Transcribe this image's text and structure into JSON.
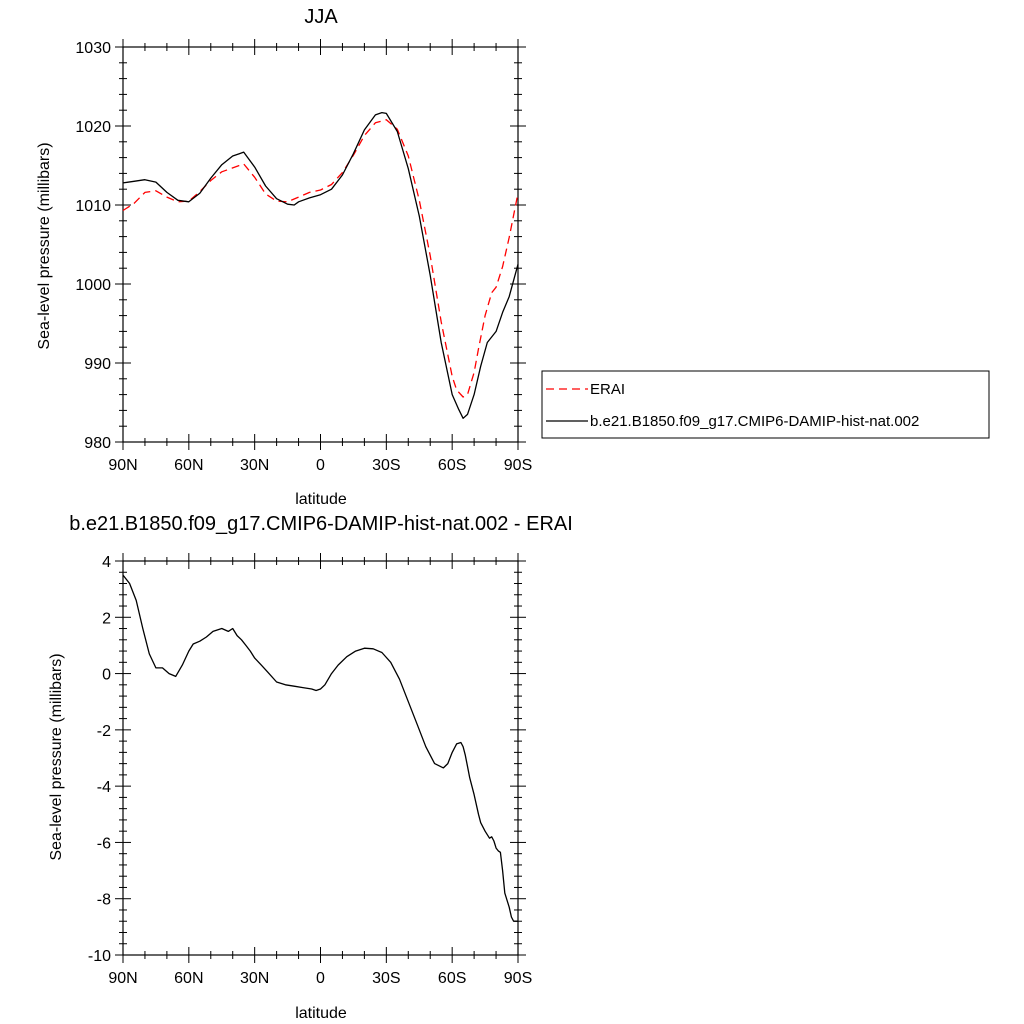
{
  "chart_data": [
    {
      "type": "line",
      "title": "JJA",
      "xlabel": "latitude",
      "ylabel": "Sea-level pressure (millibars)",
      "xlim": [
        90,
        -90
      ],
      "ylim": [
        980,
        1030
      ],
      "x_ticks": [
        {
          "value": 90,
          "label": "90N"
        },
        {
          "value": 60,
          "label": "60N"
        },
        {
          "value": 30,
          "label": "30N"
        },
        {
          "value": 0,
          "label": "0"
        },
        {
          "value": -30,
          "label": "30S"
        },
        {
          "value": -60,
          "label": "60S"
        },
        {
          "value": -90,
          "label": "90S"
        }
      ],
      "y_ticks": [
        {
          "value": 980,
          "label": "980"
        },
        {
          "value": 990,
          "label": "990"
        },
        {
          "value": 1000,
          "label": "1000"
        },
        {
          "value": 1010,
          "label": "1010"
        },
        {
          "value": 1020,
          "label": "1020"
        },
        {
          "value": 1030,
          "label": "1030"
        }
      ],
      "legend": {
        "placement": "right, outside plot"
      },
      "series": [
        {
          "name": "ERAI",
          "color": "#ff0000",
          "dash": "dashed",
          "x": [
            90,
            85,
            80,
            75,
            70,
            65,
            60,
            55,
            50,
            45,
            40,
            35,
            30,
            25,
            20,
            15,
            10,
            5,
            0,
            -5,
            -10,
            -15,
            -20,
            -25,
            -30,
            -35,
            -40,
            -45,
            -50,
            -55,
            -60,
            -62,
            -65,
            -67,
            -70,
            -72,
            -75,
            -78,
            -80,
            -83,
            -86,
            -90
          ],
          "y": [
            1009.3,
            1010.2,
            1011.6,
            1011.8,
            1011.0,
            1010.4,
            1010.5,
            1011.7,
            1013.1,
            1014.2,
            1014.7,
            1015.2,
            1013.5,
            1011.4,
            1010.5,
            1010.4,
            1011.0,
            1011.6,
            1011.9,
            1012.6,
            1014.1,
            1016.3,
            1018.8,
            1020.4,
            1020.8,
            1019.6,
            1016.2,
            1010.6,
            1003.6,
            995.2,
            988.3,
            986.6,
            985.7,
            986.0,
            988.8,
            991.8,
            996.0,
            998.9,
            999.6,
            1002.2,
            1005.9,
            1011.5
          ]
        },
        {
          "name": "b.e21.B1850.f09_g17.CMIP6-DAMIP-hist-nat.002",
          "color": "#000000",
          "dash": "solid",
          "x": [
            90,
            85,
            80,
            75,
            70,
            65,
            60,
            55,
            50,
            45,
            40,
            37,
            35,
            30,
            25,
            20,
            15,
            12,
            10,
            5,
            0,
            -5,
            -10,
            -15,
            -20,
            -25,
            -28,
            -30,
            -35,
            -40,
            -45,
            -50,
            -55,
            -60,
            -63,
            -65,
            -67,
            -70,
            -73,
            -76,
            -80,
            -83,
            -86,
            -90
          ],
          "y": [
            1012.8,
            1013.0,
            1013.2,
            1012.9,
            1011.6,
            1010.6,
            1010.4,
            1011.5,
            1013.4,
            1015.1,
            1016.2,
            1016.5,
            1016.7,
            1014.8,
            1012.4,
            1010.8,
            1010.1,
            1010.0,
            1010.4,
            1010.9,
            1011.3,
            1012.0,
            1013.8,
            1016.5,
            1019.5,
            1021.4,
            1021.7,
            1021.6,
            1019.3,
            1014.6,
            1008.6,
            1001.1,
            992.6,
            986.0,
            984.1,
            983.0,
            983.5,
            986.0,
            989.6,
            992.6,
            994.0,
            996.4,
            998.4,
            1002.5
          ]
        }
      ]
    },
    {
      "type": "line",
      "title": "b.e21.B1850.f09_g17.CMIP6-DAMIP-hist-nat.002 - ERAI",
      "xlabel": "latitude",
      "ylabel": "Sea-level pressure (millibars)",
      "xlim": [
        90,
        -90
      ],
      "ylim": [
        -10,
        4
      ],
      "x_ticks": [
        {
          "value": 90,
          "label": "90N"
        },
        {
          "value": 60,
          "label": "60N"
        },
        {
          "value": 30,
          "label": "30N"
        },
        {
          "value": 0,
          "label": "0"
        },
        {
          "value": -30,
          "label": "30S"
        },
        {
          "value": -60,
          "label": "60S"
        },
        {
          "value": -90,
          "label": "90S"
        }
      ],
      "y_ticks": [
        {
          "value": 4,
          "label": "4"
        },
        {
          "value": 2,
          "label": "2"
        },
        {
          "value": 0,
          "label": "0"
        },
        {
          "value": -2,
          "label": "-2"
        },
        {
          "value": -4,
          "label": "-4"
        },
        {
          "value": -6,
          "label": "-6"
        },
        {
          "value": -8,
          "label": "-8"
        },
        {
          "value": -10,
          "label": "-10"
        }
      ],
      "series": [
        {
          "color": "#000000",
          "dash": "solid",
          "x": [
            90,
            87,
            84,
            81,
            78,
            75,
            72,
            69,
            66,
            63,
            60,
            58,
            55,
            52,
            49,
            45,
            42,
            40,
            38,
            36,
            34,
            32,
            30,
            27,
            24,
            20,
            16,
            12,
            8,
            4,
            2,
            0,
            -2,
            -5,
            -8,
            -12,
            -16,
            -20,
            -24,
            -28,
            -32,
            -36,
            -40,
            -44,
            -48,
            -52,
            -56,
            -58,
            -60,
            -62,
            -64,
            -65,
            -66,
            -67,
            -68,
            -70,
            -72,
            -73,
            -75,
            -77,
            -78,
            -79,
            -80,
            -81,
            -82,
            -83,
            -84,
            -86,
            -87,
            -88,
            -90
          ],
          "y": [
            3.5,
            3.2,
            2.6,
            1.6,
            0.7,
            0.2,
            0.2,
            0.0,
            -0.1,
            0.3,
            0.8,
            1.05,
            1.15,
            1.3,
            1.5,
            1.6,
            1.5,
            1.6,
            1.35,
            1.2,
            1.0,
            0.8,
            0.55,
            0.3,
            0.05,
            -0.3,
            -0.4,
            -0.45,
            -0.5,
            -0.55,
            -0.6,
            -0.55,
            -0.4,
            0.0,
            0.3,
            0.6,
            0.8,
            0.9,
            0.88,
            0.75,
            0.4,
            -0.2,
            -1.0,
            -1.8,
            -2.6,
            -3.2,
            -3.35,
            -3.2,
            -2.8,
            -2.5,
            -2.45,
            -2.6,
            -2.9,
            -3.3,
            -3.7,
            -4.3,
            -5.0,
            -5.3,
            -5.6,
            -5.85,
            -5.8,
            -5.95,
            -6.2,
            -6.3,
            -6.35,
            -7.0,
            -7.8,
            -8.3,
            -8.65,
            -8.8,
            -8.8
          ]
        }
      ]
    }
  ]
}
